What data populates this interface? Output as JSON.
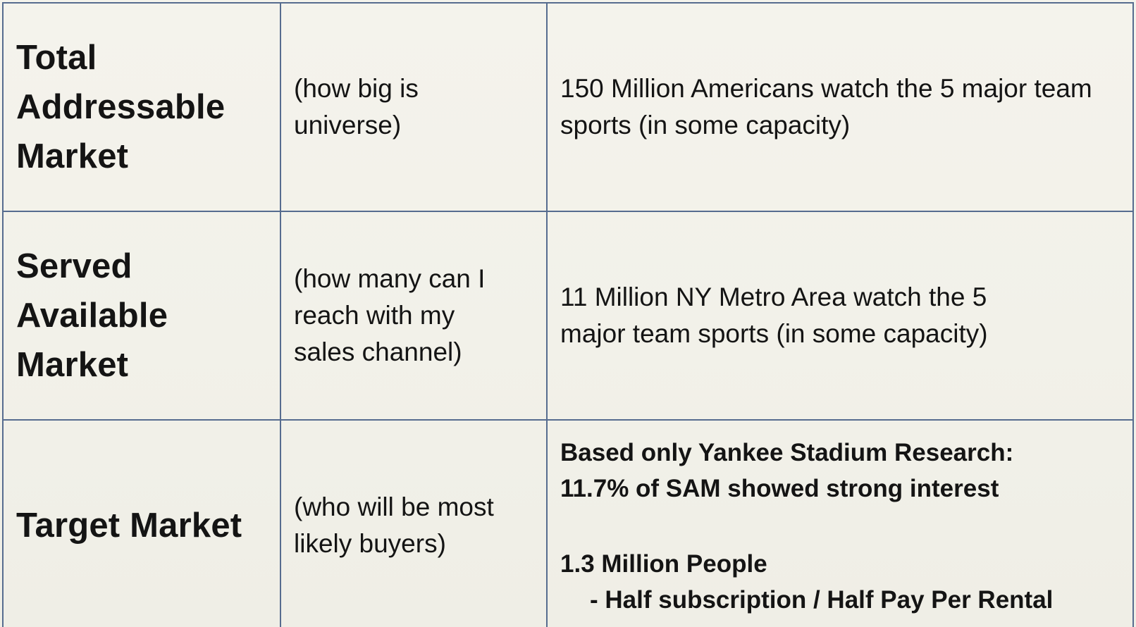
{
  "table": {
    "rows": [
      {
        "term_words": [
          "Total",
          "Addressable",
          "Market"
        ],
        "description": "(how big is universe)",
        "value": "150 Million Americans watch the 5 major team sports (in some capacity)"
      },
      {
        "term_words": [
          "Served",
          "Available",
          "Market"
        ],
        "description": "(how many can I reach with my sales channel)",
        "value": "11 Million NY Metro Area watch the 5 major team sports (in some capacity)"
      },
      {
        "term_words": [
          "Target Market"
        ],
        "description": "(who will be most likely buyers)",
        "value_lines": [
          "Based only Yankee Stadium Research:",
          "11.7% of SAM showed strong interest",
          "1.3 Million People",
          "- Half subscription / Half Pay Per Rental"
        ]
      }
    ]
  },
  "colors": {
    "border": "#566c8f",
    "background": "#f3f2ea",
    "text": "#141414"
  }
}
